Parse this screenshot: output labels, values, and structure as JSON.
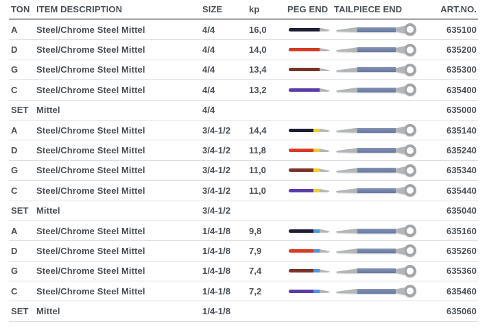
{
  "table": {
    "columns": [
      "TON",
      "ITEM DESCRIPTION",
      "SIZE",
      "kp",
      "PEG END",
      "TAILPIECE END",
      "ART.NO."
    ],
    "rows": [
      {
        "ton": "A",
        "desc": "Steel/Chrome Steel Mittel",
        "size": "4/4",
        "kp": "16,0",
        "peg_color": "navy",
        "peg_band": null,
        "tailpiece": true,
        "art": "635100"
      },
      {
        "ton": "D",
        "desc": "Steel/Chrome Steel Mittel",
        "size": "4/4",
        "kp": "14,0",
        "peg_color": "red",
        "peg_band": null,
        "tailpiece": true,
        "art": "635200"
      },
      {
        "ton": "G",
        "desc": "Steel/Chrome Steel Mittel",
        "size": "4/4",
        "kp": "13,4",
        "peg_color": "brown",
        "peg_band": null,
        "tailpiece": true,
        "art": "635300"
      },
      {
        "ton": "C",
        "desc": "Steel/Chrome Steel Mittel",
        "size": "4/4",
        "kp": "13,2",
        "peg_color": "purple",
        "peg_band": null,
        "tailpiece": true,
        "art": "635400"
      },
      {
        "ton": "SET",
        "desc": "Mittel",
        "size": "4/4",
        "kp": "",
        "peg_color": null,
        "peg_band": null,
        "tailpiece": false,
        "art": "635000"
      },
      {
        "ton": "A",
        "desc": "Steel/Chrome Steel Mittel",
        "size": "3/4-1/2",
        "kp": "14,4",
        "peg_color": "navy",
        "peg_band": "yellow",
        "tailpiece": true,
        "art": "635140"
      },
      {
        "ton": "D",
        "desc": "Steel/Chrome Steel Mittel",
        "size": "3/4-1/2",
        "kp": "11,8",
        "peg_color": "red",
        "peg_band": "yellow",
        "tailpiece": true,
        "art": "635240"
      },
      {
        "ton": "G",
        "desc": "Steel/Chrome Steel Mittel",
        "size": "3/4-1/2",
        "kp": "11,0",
        "peg_color": "brown",
        "peg_band": "yellow",
        "tailpiece": true,
        "art": "635340"
      },
      {
        "ton": "C",
        "desc": "Steel/Chrome Steel Mittel",
        "size": "3/4-1/2",
        "kp": "11,0",
        "peg_color": "purple",
        "peg_band": "yellow",
        "tailpiece": true,
        "art": "635440"
      },
      {
        "ton": "SET",
        "desc": "Mittel",
        "size": "3/4-1/2",
        "kp": "",
        "peg_color": null,
        "peg_band": null,
        "tailpiece": false,
        "art": "635040"
      },
      {
        "ton": "A",
        "desc": "Steel/Chrome Steel Mittel",
        "size": "1/4-1/8",
        "kp": "9,8",
        "peg_color": "navy",
        "peg_band": "blue",
        "tailpiece": true,
        "art": "635160"
      },
      {
        "ton": "D",
        "desc": "Steel/Chrome Steel Mittel",
        "size": "1/4-1/8",
        "kp": "7,9",
        "peg_color": "red",
        "peg_band": "blue",
        "tailpiece": true,
        "art": "635260"
      },
      {
        "ton": "G",
        "desc": "Steel/Chrome Steel Mittel",
        "size": "1/4-1/8",
        "kp": "7,4",
        "peg_color": "brown",
        "peg_band": "blue",
        "tailpiece": true,
        "art": "635360"
      },
      {
        "ton": "C",
        "desc": "Steel/Chrome Steel Mittel",
        "size": "1/4-1/8",
        "kp": "7,2",
        "peg_color": "purple",
        "peg_band": "blue",
        "tailpiece": true,
        "art": "635460"
      },
      {
        "ton": "SET",
        "desc": "Mittel",
        "size": "1/4-1/8",
        "kp": "",
        "peg_color": null,
        "peg_band": null,
        "tailpiece": false,
        "art": "635060"
      }
    ]
  },
  "colors": {
    "navy": "#1c1c33",
    "red": "#d63b26",
    "brown": "#793227",
    "purple": "#5a3ca8",
    "band_yellow": "#f3cf2b",
    "band_blue": "#4d94e0",
    "string_gray": "#b3b6b8",
    "tail_gray": "#b3b6b8",
    "tail_blue_light": "#8492b5",
    "tail_blue": "#66779f",
    "ring_gray": "#a3a5a7",
    "text": "#4a5055"
  }
}
